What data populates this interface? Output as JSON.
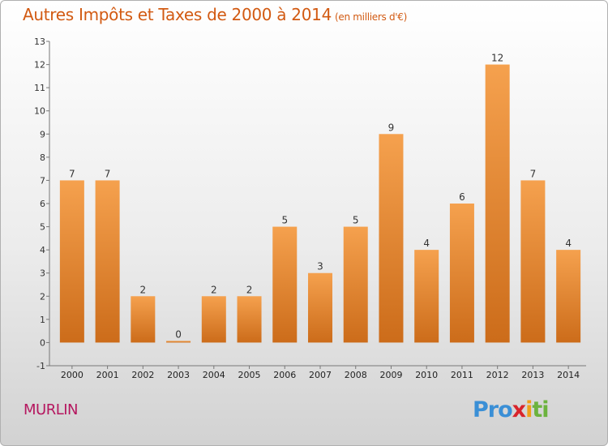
{
  "title": "Autres Impôts et Taxes de 2000 à 2014",
  "title_unit": "(en milliers d'€)",
  "commune": "MURLIN",
  "logo": {
    "letters": [
      "Pro",
      "x",
      "i",
      "ti"
    ],
    "colors": [
      "#3a8fd6",
      "#d8242b",
      "#f0a018",
      "#6cb33e"
    ]
  },
  "colors": {
    "bar_light": "#f5a14e",
    "bar_dark": "#cc6c1a",
    "title": "#d25a12",
    "commune": "#b5175f"
  },
  "chart_data": {
    "type": "bar",
    "categories": [
      "2000",
      "2001",
      "2002",
      "2003",
      "2004",
      "2005",
      "2006",
      "2007",
      "2008",
      "2009",
      "2010",
      "2011",
      "2012",
      "2013",
      "2014"
    ],
    "values": [
      7,
      7,
      2,
      0,
      2,
      2,
      5,
      3,
      5,
      9,
      4,
      6,
      12,
      7,
      4
    ],
    "ylim": [
      -1,
      13
    ],
    "yticks": [
      -1,
      0,
      1,
      2,
      3,
      4,
      5,
      6,
      7,
      8,
      9,
      10,
      11,
      12,
      13
    ],
    "grid": false,
    "data_labels": true
  }
}
